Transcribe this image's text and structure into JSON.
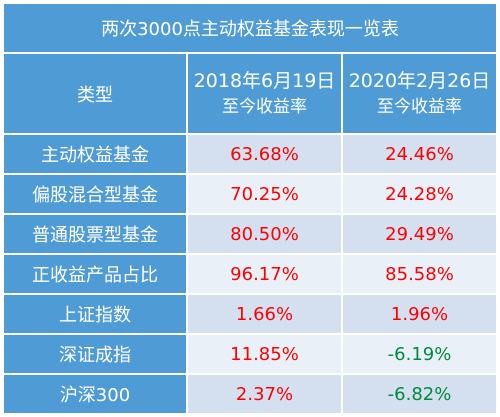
{
  "title": "两次3000点主动权益基金表现一览表",
  "header": {
    "type_label": "类型",
    "col2_line1": "2018年6月19日",
    "col2_line2": "至今收益率",
    "col3_line1": "2020年2月26日",
    "col3_line2": "至今收益率"
  },
  "rows": [
    {
      "label": "主动权益基金",
      "v1": "63.68%",
      "v2": "24.46%"
    },
    {
      "label": "偏股混合型基金",
      "v1": "70.25%",
      "v2": "24.28%"
    },
    {
      "label": "普通股票型基金",
      "v1": "80.50%",
      "v2": "29.49%"
    },
    {
      "label": "正收益产品占比",
      "v1": "96.17%",
      "v2": "85.58%"
    },
    {
      "label": "上证指数",
      "v1": "1.66%",
      "v2": "1.96%"
    },
    {
      "label": "深证成指",
      "v1": "11.85%",
      "v2": "-6.19%"
    },
    {
      "label": "沪深300",
      "v1": "2.37%",
      "v2": "-6.82%"
    }
  ],
  "colors": {
    "header_bg": "#4f9bd6",
    "positive": "#ff0000",
    "negative": "#008a3a"
  }
}
